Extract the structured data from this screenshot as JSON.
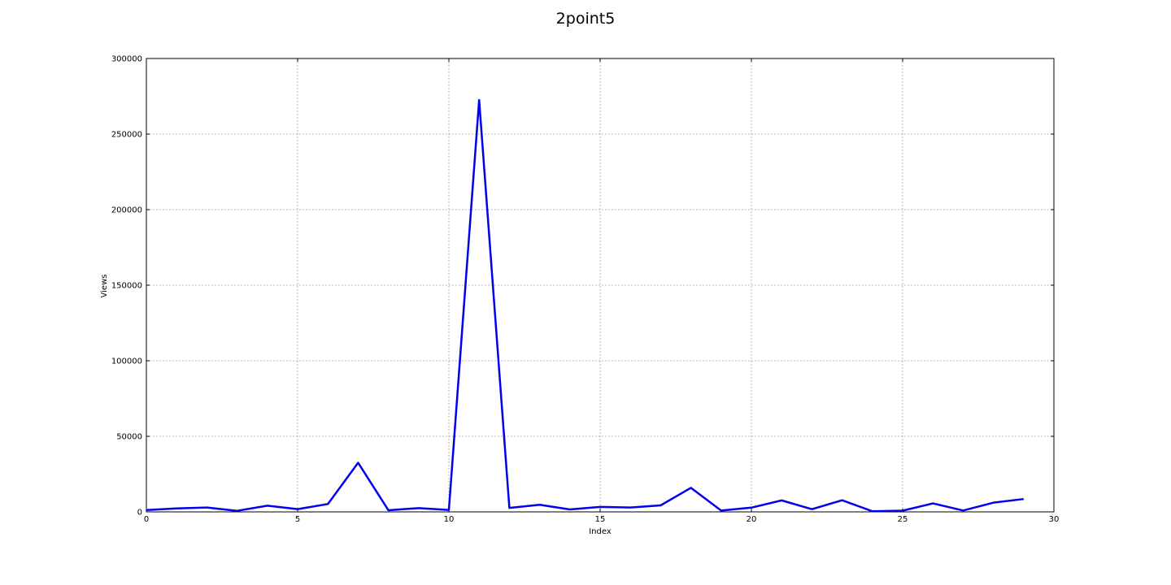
{
  "chart_data": {
    "type": "line",
    "title": "2point5",
    "xlabel": "Index",
    "ylabel": "Views",
    "xlim": [
      0,
      30
    ],
    "ylim": [
      0,
      300000
    ],
    "xticks": [
      0,
      5,
      10,
      15,
      20,
      25,
      30
    ],
    "yticks": [
      0,
      50000,
      100000,
      150000,
      200000,
      250000,
      300000
    ],
    "xtick_labels": [
      "0",
      "5",
      "10",
      "15",
      "20",
      "25",
      "30"
    ],
    "ytick_labels": [
      "0",
      "50000",
      "100000",
      "150000",
      "200000",
      "250000",
      "300000"
    ],
    "grid": true,
    "series": [
      {
        "color": "#0000ee",
        "x": [
          0,
          1,
          2,
          3,
          4,
          5,
          6,
          7,
          8,
          9,
          10,
          11,
          12,
          13,
          14,
          15,
          16,
          17,
          18,
          19,
          20,
          21,
          22,
          23,
          24,
          25,
          26,
          27,
          28,
          29
        ],
        "values": [
          1200,
          2300,
          2900,
          700,
          4100,
          1800,
          5200,
          32500,
          1100,
          2500,
          1300,
          272500,
          2600,
          4700,
          1600,
          3300,
          2900,
          4300,
          15900,
          900,
          2800,
          7600,
          1800,
          7700,
          400,
          800,
          5600,
          900,
          6100,
          8500
        ]
      }
    ]
  }
}
